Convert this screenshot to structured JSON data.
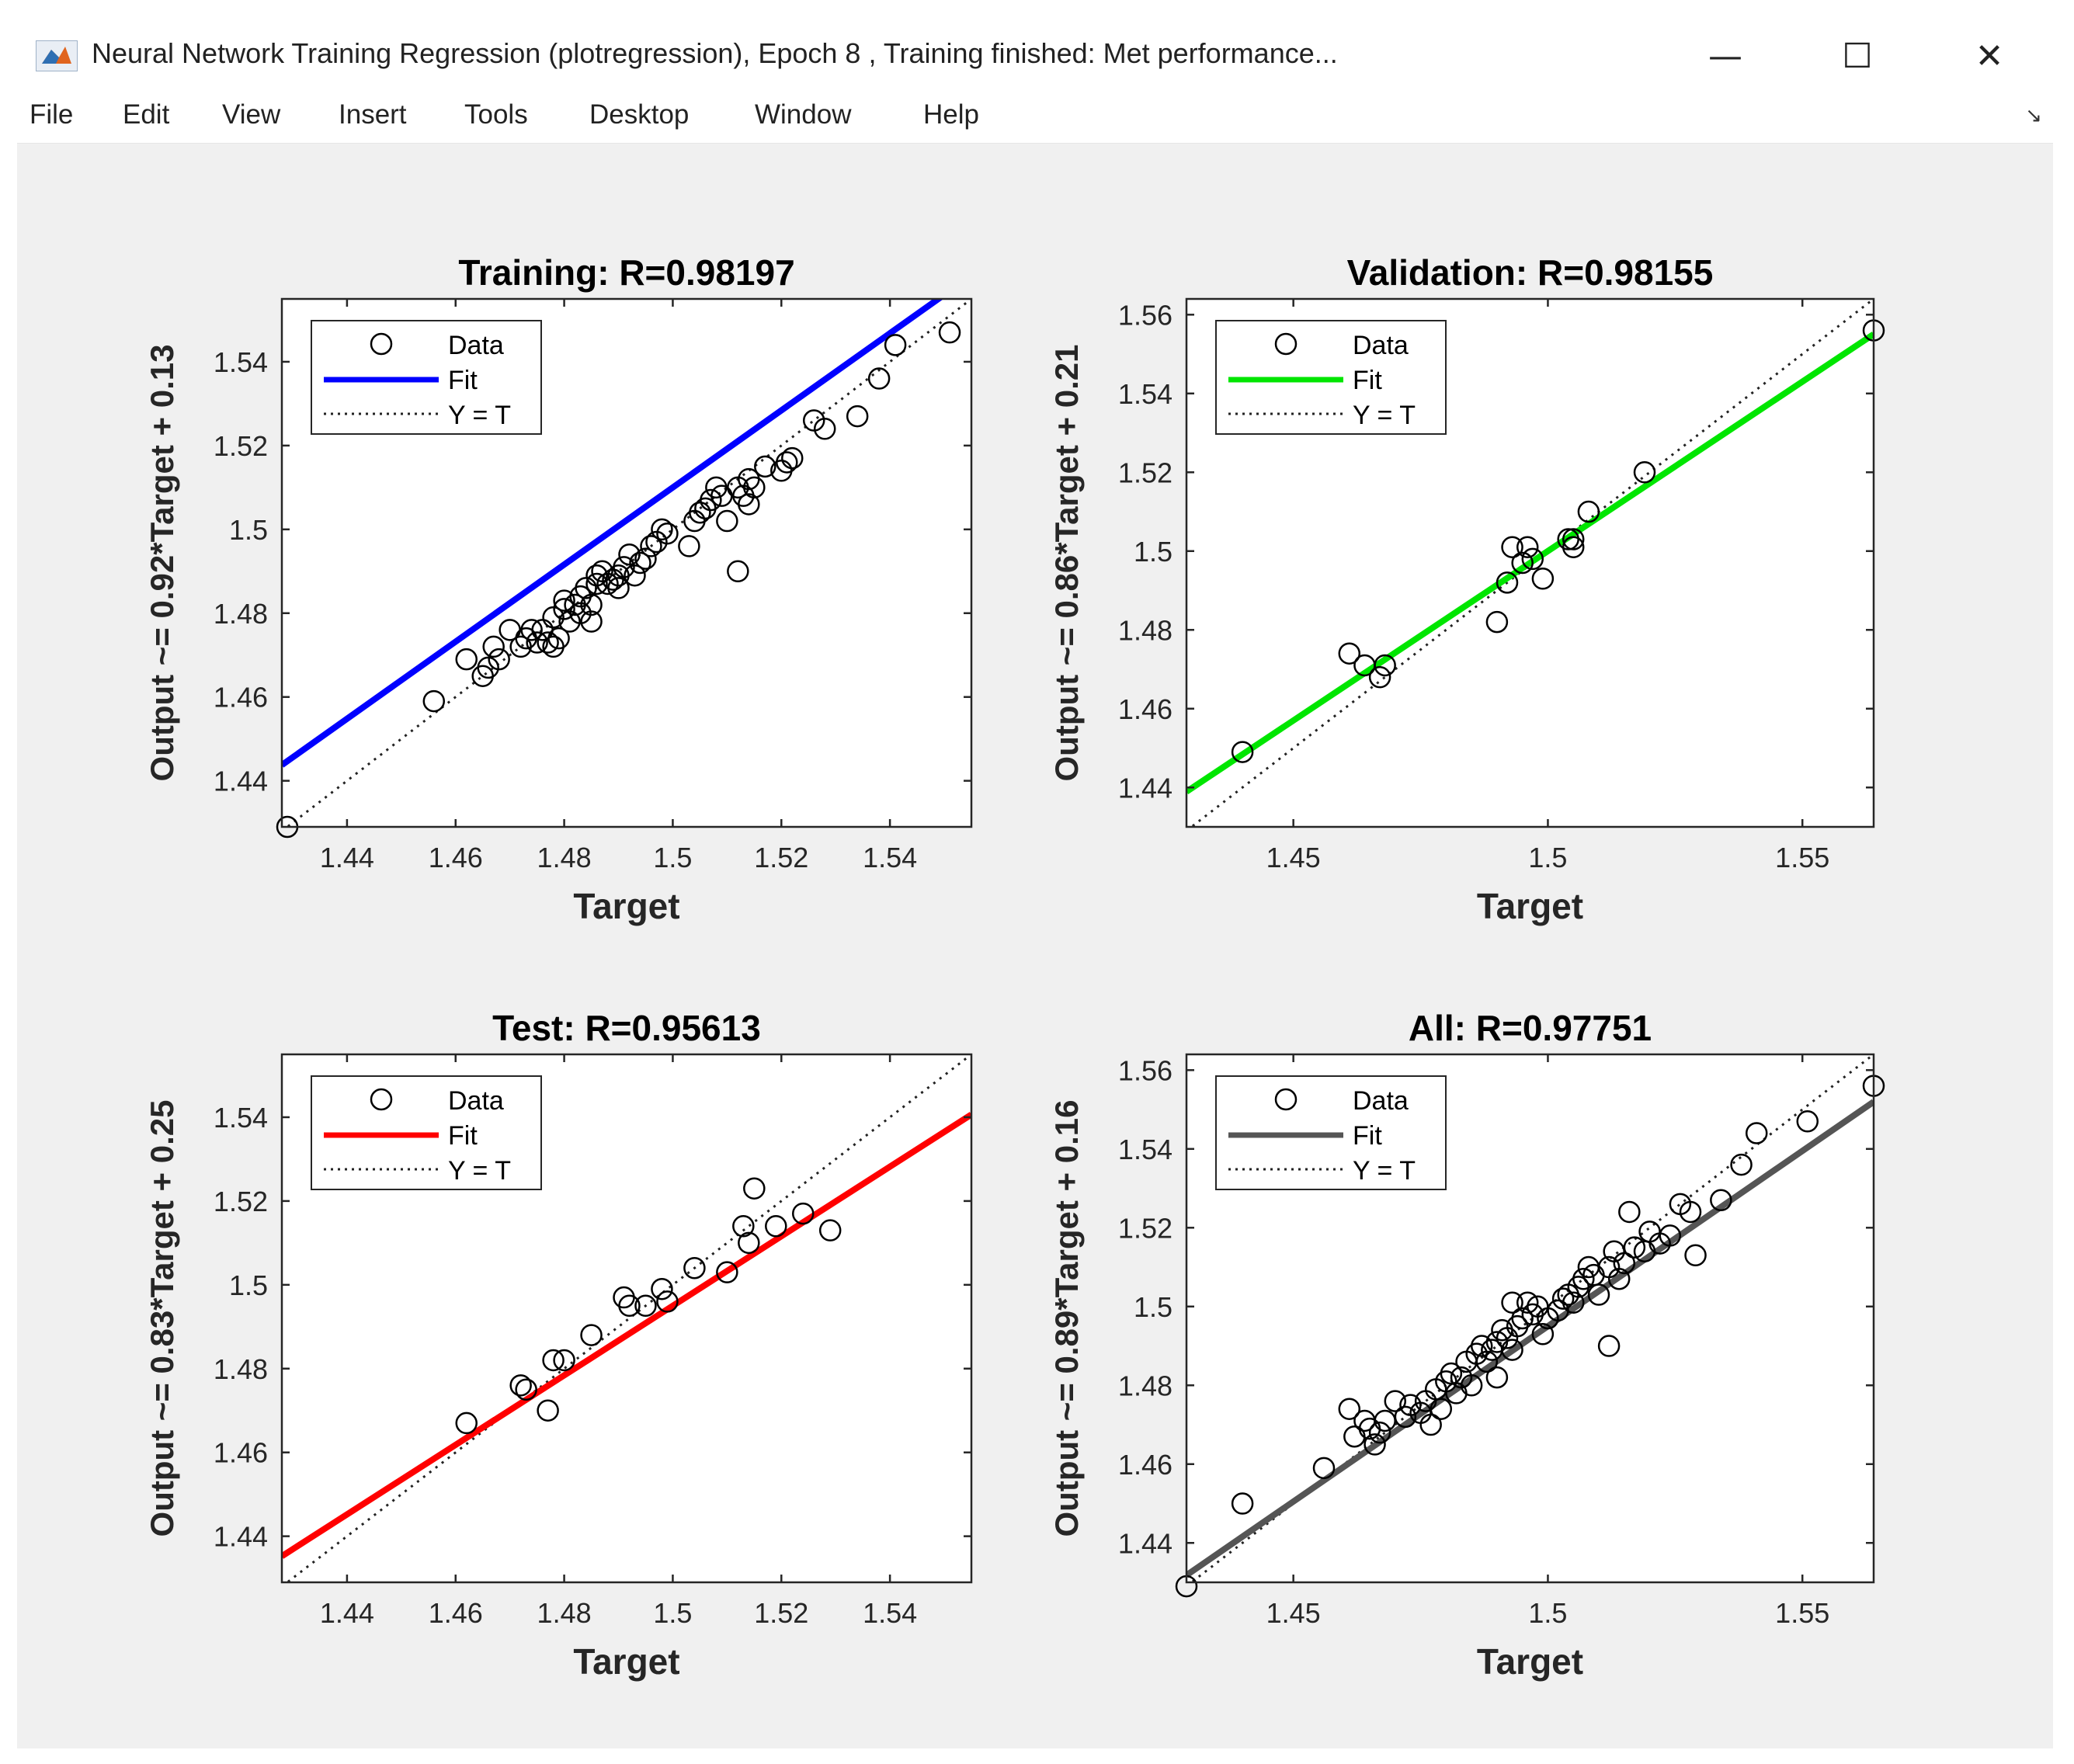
{
  "window": {
    "title": "Neural Network Training Regression (plotregression), Epoch 8 , Training finished: Met performance...",
    "minimize_glyph": "—",
    "maximize_glyph": "☐",
    "close_glyph": "✕",
    "app_icon": "matlab-icon"
  },
  "menu": {
    "items": [
      "File",
      "Edit",
      "View",
      "Insert",
      "Tools",
      "Desktop",
      "Window",
      "Help"
    ],
    "arrow_icon": "dock-arrow-icon"
  },
  "legend": {
    "data_label": "Data",
    "fit_label": "Fit",
    "yt_label": "Y = T"
  },
  "chart_data": [
    {
      "type": "scatter",
      "title": "Training: R=0.98197",
      "xlabel": "Target",
      "ylabel": "Output ~= 0.92*Target + 0.13",
      "xlim": [
        1.428,
        1.555
      ],
      "ylim": [
        1.429,
        1.555
      ],
      "xticks": [
        1.44,
        1.46,
        1.48,
        1.5,
        1.52,
        1.54
      ],
      "xtick_labels": [
        "1.44",
        "1.46",
        "1.48",
        "1.5",
        "1.52",
        "1.54"
      ],
      "yticks": [
        1.44,
        1.46,
        1.48,
        1.5,
        1.52,
        1.54
      ],
      "ytick_labels": [
        "1.44",
        "1.46",
        "1.48",
        "1.5",
        "1.52",
        "1.54"
      ],
      "fit": {
        "slope": 0.92,
        "intercept": 0.13,
        "color": "#0000ff"
      },
      "legend_position": "top-left",
      "points": [
        [
          1.429,
          1.429
        ],
        [
          1.456,
          1.459
        ],
        [
          1.462,
          1.469
        ],
        [
          1.465,
          1.465
        ],
        [
          1.466,
          1.467
        ],
        [
          1.467,
          1.472
        ],
        [
          1.468,
          1.469
        ],
        [
          1.47,
          1.476
        ],
        [
          1.472,
          1.472
        ],
        [
          1.473,
          1.474
        ],
        [
          1.474,
          1.476
        ],
        [
          1.475,
          1.473
        ],
        [
          1.476,
          1.476
        ],
        [
          1.477,
          1.473
        ],
        [
          1.478,
          1.472
        ],
        [
          1.478,
          1.479
        ],
        [
          1.479,
          1.474
        ],
        [
          1.48,
          1.481
        ],
        [
          1.48,
          1.483
        ],
        [
          1.481,
          1.478
        ],
        [
          1.482,
          1.482
        ],
        [
          1.483,
          1.48
        ],
        [
          1.483,
          1.484
        ],
        [
          1.484,
          1.486
        ],
        [
          1.485,
          1.478
        ],
        [
          1.485,
          1.482
        ],
        [
          1.486,
          1.487
        ],
        [
          1.486,
          1.489
        ],
        [
          1.487,
          1.49
        ],
        [
          1.488,
          1.487
        ],
        [
          1.489,
          1.488
        ],
        [
          1.49,
          1.486
        ],
        [
          1.49,
          1.489
        ],
        [
          1.491,
          1.491
        ],
        [
          1.492,
          1.494
        ],
        [
          1.493,
          1.489
        ],
        [
          1.494,
          1.492
        ],
        [
          1.495,
          1.493
        ],
        [
          1.496,
          1.496
        ],
        [
          1.497,
          1.497
        ],
        [
          1.498,
          1.5
        ],
        [
          1.499,
          1.499
        ],
        [
          1.503,
          1.496
        ],
        [
          1.504,
          1.502
        ],
        [
          1.505,
          1.504
        ],
        [
          1.506,
          1.505
        ],
        [
          1.507,
          1.507
        ],
        [
          1.508,
          1.51
        ],
        [
          1.509,
          1.508
        ],
        [
          1.51,
          1.502
        ],
        [
          1.512,
          1.51
        ],
        [
          1.512,
          1.49
        ],
        [
          1.513,
          1.508
        ],
        [
          1.514,
          1.512
        ],
        [
          1.514,
          1.506
        ],
        [
          1.515,
          1.51
        ],
        [
          1.517,
          1.515
        ],
        [
          1.52,
          1.514
        ],
        [
          1.521,
          1.516
        ],
        [
          1.522,
          1.517
        ],
        [
          1.526,
          1.526
        ],
        [
          1.528,
          1.524
        ],
        [
          1.534,
          1.527
        ],
        [
          1.538,
          1.536
        ],
        [
          1.541,
          1.544
        ],
        [
          1.551,
          1.547
        ]
      ]
    },
    {
      "type": "scatter",
      "title": "Validation: R=0.98155",
      "xlabel": "Target",
      "ylabel": "Output ~= 0.86*Target + 0.21",
      "xlim": [
        1.429,
        1.564
      ],
      "ylim": [
        1.43,
        1.564
      ],
      "xticks": [
        1.45,
        1.5,
        1.55
      ],
      "xtick_labels": [
        "1.45",
        "1.5",
        "1.55"
      ],
      "yticks": [
        1.44,
        1.46,
        1.48,
        1.5,
        1.52,
        1.54,
        1.56
      ],
      "ytick_labels": [
        "1.44",
        "1.46",
        "1.48",
        "1.5",
        "1.52",
        "1.54",
        "1.56"
      ],
      "fit": {
        "slope": 0.86,
        "intercept": 0.21,
        "color": "#00e600"
      },
      "legend_position": "top-left",
      "points": [
        [
          1.44,
          1.449
        ],
        [
          1.461,
          1.474
        ],
        [
          1.464,
          1.471
        ],
        [
          1.467,
          1.468
        ],
        [
          1.468,
          1.471
        ],
        [
          1.49,
          1.482
        ],
        [
          1.492,
          1.492
        ],
        [
          1.493,
          1.501
        ],
        [
          1.495,
          1.497
        ],
        [
          1.496,
          1.501
        ],
        [
          1.497,
          1.498
        ],
        [
          1.499,
          1.493
        ],
        [
          1.504,
          1.503
        ],
        [
          1.505,
          1.501
        ],
        [
          1.505,
          1.503
        ],
        [
          1.508,
          1.51
        ],
        [
          1.519,
          1.52
        ],
        [
          1.564,
          1.556
        ]
      ]
    },
    {
      "type": "scatter",
      "title": "Test: R=0.95613",
      "xlabel": "Target",
      "ylabel": "Output ~= 0.83*Target + 0.25",
      "xlim": [
        1.428,
        1.555
      ],
      "ylim": [
        1.429,
        1.555
      ],
      "xticks": [
        1.44,
        1.46,
        1.48,
        1.5,
        1.52,
        1.54
      ],
      "xtick_labels": [
        "1.44",
        "1.46",
        "1.48",
        "1.5",
        "1.52",
        "1.54"
      ],
      "yticks": [
        1.44,
        1.46,
        1.48,
        1.5,
        1.52,
        1.54
      ],
      "ytick_labels": [
        "1.44",
        "1.46",
        "1.48",
        "1.5",
        "1.52",
        "1.54"
      ],
      "fit": {
        "slope": 0.83,
        "intercept": 0.25,
        "color": "#ff0000"
      },
      "legend_position": "top-left",
      "points": [
        [
          1.462,
          1.467
        ],
        [
          1.472,
          1.476
        ],
        [
          1.473,
          1.475
        ],
        [
          1.477,
          1.47
        ],
        [
          1.478,
          1.482
        ],
        [
          1.48,
          1.482
        ],
        [
          1.485,
          1.488
        ],
        [
          1.491,
          1.497
        ],
        [
          1.492,
          1.495
        ],
        [
          1.495,
          1.495
        ],
        [
          1.498,
          1.499
        ],
        [
          1.499,
          1.496
        ],
        [
          1.504,
          1.504
        ],
        [
          1.51,
          1.503
        ],
        [
          1.513,
          1.514
        ],
        [
          1.514,
          1.51
        ],
        [
          1.515,
          1.523
        ],
        [
          1.519,
          1.514
        ],
        [
          1.524,
          1.517
        ],
        [
          1.529,
          1.513
        ]
      ]
    },
    {
      "type": "scatter",
      "title": "All: R=0.97751",
      "xlabel": "Target",
      "ylabel": "Output ~= 0.89*Target + 0.16",
      "xlim": [
        1.429,
        1.564
      ],
      "ylim": [
        1.43,
        1.564
      ],
      "xticks": [
        1.45,
        1.5,
        1.55
      ],
      "xtick_labels": [
        "1.45",
        "1.5",
        "1.55"
      ],
      "yticks": [
        1.44,
        1.46,
        1.48,
        1.5,
        1.52,
        1.54,
        1.56
      ],
      "ytick_labels": [
        "1.44",
        "1.46",
        "1.48",
        "1.5",
        "1.52",
        "1.54",
        "1.56"
      ],
      "fit": {
        "slope": 0.89,
        "intercept": 0.16,
        "color": "#555555"
      },
      "legend_position": "top-left",
      "points": [
        [
          1.429,
          1.429
        ],
        [
          1.44,
          1.45
        ],
        [
          1.456,
          1.459
        ],
        [
          1.461,
          1.474
        ],
        [
          1.462,
          1.467
        ],
        [
          1.464,
          1.471
        ],
        [
          1.465,
          1.469
        ],
        [
          1.466,
          1.465
        ],
        [
          1.467,
          1.468
        ],
        [
          1.468,
          1.471
        ],
        [
          1.47,
          1.476
        ],
        [
          1.472,
          1.472
        ],
        [
          1.473,
          1.475
        ],
        [
          1.475,
          1.473
        ],
        [
          1.476,
          1.476
        ],
        [
          1.477,
          1.47
        ],
        [
          1.478,
          1.479
        ],
        [
          1.479,
          1.474
        ],
        [
          1.48,
          1.481
        ],
        [
          1.481,
          1.483
        ],
        [
          1.482,
          1.478
        ],
        [
          1.483,
          1.482
        ],
        [
          1.484,
          1.486
        ],
        [
          1.485,
          1.48
        ],
        [
          1.486,
          1.488
        ],
        [
          1.487,
          1.49
        ],
        [
          1.488,
          1.486
        ],
        [
          1.489,
          1.489
        ],
        [
          1.49,
          1.482
        ],
        [
          1.49,
          1.491
        ],
        [
          1.491,
          1.494
        ],
        [
          1.492,
          1.492
        ],
        [
          1.493,
          1.489
        ],
        [
          1.493,
          1.501
        ],
        [
          1.494,
          1.495
        ],
        [
          1.495,
          1.497
        ],
        [
          1.496,
          1.501
        ],
        [
          1.497,
          1.498
        ],
        [
          1.498,
          1.5
        ],
        [
          1.499,
          1.493
        ],
        [
          1.5,
          1.497
        ],
        [
          1.502,
          1.499
        ],
        [
          1.503,
          1.502
        ],
        [
          1.504,
          1.503
        ],
        [
          1.505,
          1.501
        ],
        [
          1.506,
          1.505
        ],
        [
          1.507,
          1.507
        ],
        [
          1.508,
          1.51
        ],
        [
          1.509,
          1.508
        ],
        [
          1.51,
          1.503
        ],
        [
          1.512,
          1.51
        ],
        [
          1.512,
          1.49
        ],
        [
          1.513,
          1.514
        ],
        [
          1.514,
          1.507
        ],
        [
          1.515,
          1.511
        ],
        [
          1.516,
          1.524
        ],
        [
          1.517,
          1.515
        ],
        [
          1.519,
          1.514
        ],
        [
          1.52,
          1.519
        ],
        [
          1.522,
          1.516
        ],
        [
          1.524,
          1.518
        ],
        [
          1.526,
          1.526
        ],
        [
          1.528,
          1.524
        ],
        [
          1.529,
          1.513
        ],
        [
          1.534,
          1.527
        ],
        [
          1.538,
          1.536
        ],
        [
          1.541,
          1.544
        ],
        [
          1.551,
          1.547
        ],
        [
          1.564,
          1.556
        ]
      ]
    }
  ]
}
